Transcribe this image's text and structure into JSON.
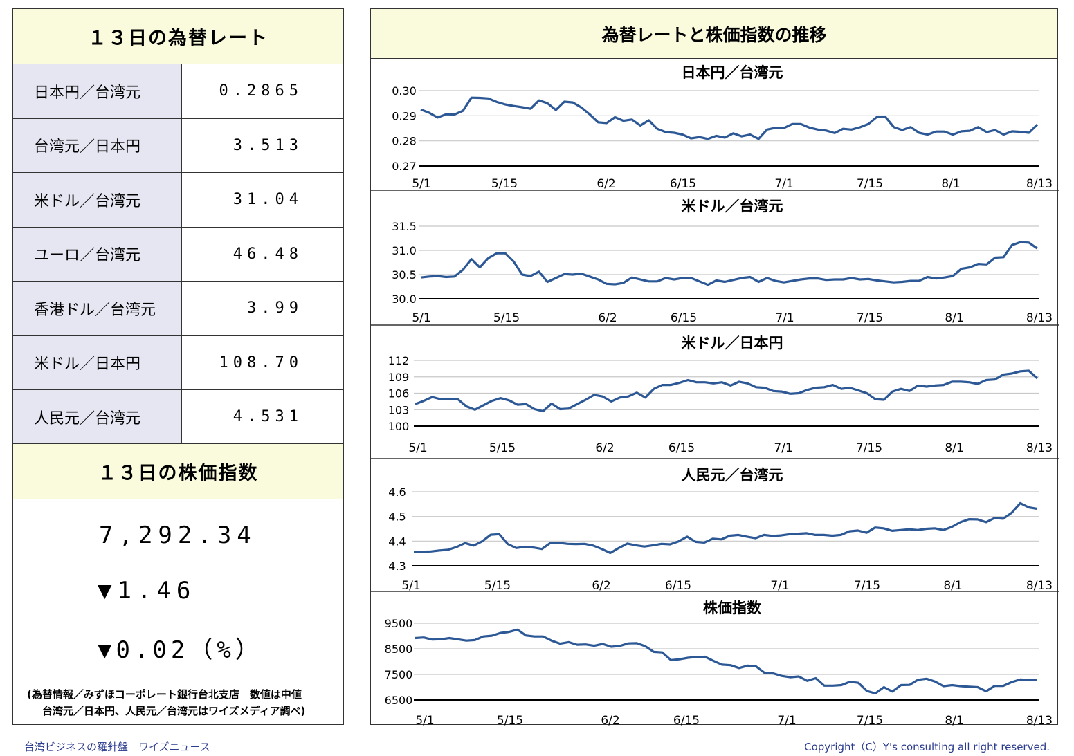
{
  "left": {
    "rates_header": "１３日の為替レート",
    "rates": [
      {
        "label": "日本円／台湾元",
        "value": "0.2865"
      },
      {
        "label": "台湾元／日本円",
        "value": "3.513"
      },
      {
        "label": "米ドル／台湾元",
        "value": "31.04"
      },
      {
        "label": "ユーロ／台湾元",
        "value": "46.48"
      },
      {
        "label": "香港ドル／台湾元",
        "value": "3.99"
      },
      {
        "label": "米ドル／日本円",
        "value": "108.70"
      },
      {
        "label": "人民元／台湾元",
        "value": "4.531"
      }
    ],
    "stock_header": "１３日の株価指数",
    "stock_value": "7,292.34",
    "stock_change": "▼1.46",
    "stock_change_pct": "▼0.02（%）",
    "note_line1": "(為替情報／みずほコーポレート銀行台北支店　数値は中値",
    "note_line2": "台湾元／日本円、人民元／台湾元はワイズメディア調べ)"
  },
  "right": {
    "title": "為替レートと株価指数の推移"
  },
  "footer": {
    "left": "台湾ビジネスの羅針盤　ワイズニュース",
    "right": "Copyright（C）Y's consulting all right reserved."
  },
  "colors": {
    "line": "#2d5896",
    "header_bg": "#fafadc",
    "label_bg": "#e6e6f2",
    "footer_text": "#2b3b8e"
  },
  "chart_data": [
    {
      "type": "line",
      "title": "日本円／台湾元",
      "xticks": [
        "5/1",
        "5/15",
        "6/2",
        "6/15",
        "7/1",
        "7/15",
        "8/1",
        "8/13"
      ],
      "yticks": [
        "0.30",
        "0.29",
        "0.28",
        "0.27"
      ],
      "ylim": [
        0.27,
        0.3
      ],
      "values": [
        0.2925,
        0.2912,
        0.2893,
        0.2906,
        0.2905,
        0.292,
        0.2972,
        0.2971,
        0.2969,
        0.2955,
        0.2945,
        0.2939,
        0.2934,
        0.2928,
        0.2961,
        0.295,
        0.2923,
        0.2956,
        0.2953,
        0.2933,
        0.2906,
        0.2874,
        0.2871,
        0.2894,
        0.288,
        0.2885,
        0.2861,
        0.2882,
        0.2848,
        0.2835,
        0.2832,
        0.2825,
        0.281,
        0.2815,
        0.2808,
        0.282,
        0.2813,
        0.283,
        0.2818,
        0.2825,
        0.2808,
        0.2845,
        0.2852,
        0.2851,
        0.2867,
        0.2867,
        0.2853,
        0.2845,
        0.2841,
        0.2831,
        0.2848,
        0.2845,
        0.2854,
        0.2867,
        0.2895,
        0.2896,
        0.2855,
        0.2843,
        0.2855,
        0.2832,
        0.2825,
        0.2837,
        0.2837,
        0.2825,
        0.2838,
        0.284,
        0.2855,
        0.2835,
        0.2843,
        0.2825,
        0.2838,
        0.2836,
        0.2832,
        0.2865
      ]
    },
    {
      "type": "line",
      "title": "米ドル／台湾元",
      "xticks": [
        "5/1",
        "5/15",
        "6/2",
        "6/15",
        "7/1",
        "7/15",
        "8/1",
        "8/13"
      ],
      "yticks": [
        "31.5",
        "31.0",
        "30.5",
        "30.0"
      ],
      "ylim": [
        30.0,
        31.5
      ],
      "values": [
        30.44,
        30.46,
        30.47,
        30.45,
        30.46,
        30.6,
        30.82,
        30.65,
        30.84,
        30.94,
        30.94,
        30.77,
        30.5,
        30.47,
        30.56,
        30.35,
        30.43,
        30.51,
        30.5,
        30.52,
        30.46,
        30.4,
        30.31,
        30.3,
        30.33,
        30.44,
        30.4,
        30.36,
        30.36,
        30.43,
        30.4,
        30.43,
        30.43,
        30.36,
        30.29,
        30.38,
        30.35,
        30.39,
        30.43,
        30.45,
        30.35,
        30.43,
        30.37,
        30.34,
        30.37,
        30.4,
        30.42,
        30.42,
        30.39,
        30.4,
        30.4,
        30.43,
        30.4,
        30.41,
        30.38,
        30.36,
        30.34,
        30.35,
        30.37,
        30.37,
        30.45,
        30.42,
        30.44,
        30.47,
        30.62,
        30.65,
        30.72,
        30.71,
        30.85,
        30.86,
        31.11,
        31.17,
        31.16,
        31.04
      ]
    },
    {
      "type": "line",
      "title": "米ドル／日本円",
      "xticks": [
        "5/1",
        "5/15",
        "6/2",
        "6/15",
        "7/1",
        "7/15",
        "8/1",
        "8/13"
      ],
      "yticks": [
        "112",
        "109",
        "106",
        "103",
        "100"
      ],
      "ylim": [
        100,
        112
      ],
      "values": [
        104.0,
        104.6,
        105.3,
        104.9,
        104.9,
        104.9,
        103.6,
        103.0,
        103.8,
        104.6,
        105.1,
        104.7,
        103.9,
        104.0,
        103.1,
        102.7,
        104.1,
        103.1,
        103.2,
        104.0,
        104.8,
        105.7,
        105.4,
        104.5,
        105.2,
        105.4,
        106.1,
        105.2,
        106.8,
        107.5,
        107.5,
        107.9,
        108.4,
        108.0,
        108.0,
        107.8,
        108.0,
        107.4,
        108.1,
        107.8,
        107.1,
        107.0,
        106.4,
        106.3,
        105.9,
        106.0,
        106.6,
        107.0,
        107.1,
        107.5,
        106.8,
        107.0,
        106.5,
        106.0,
        104.9,
        104.8,
        106.3,
        106.8,
        106.4,
        107.4,
        107.2,
        107.4,
        107.5,
        108.1,
        108.1,
        108.0,
        107.7,
        108.4,
        108.5,
        109.4,
        109.6,
        110.0,
        110.1,
        108.7
      ]
    },
    {
      "type": "line",
      "title": "人民元／台湾元",
      "xticks": [
        "5/1",
        "5/15",
        "6/2",
        "6/15",
        "7/1",
        "7/15",
        "8/1",
        "8/13"
      ],
      "yticks": [
        "4.6",
        "4.5",
        "4.4",
        "4.3"
      ],
      "ylim": [
        4.3,
        4.6
      ],
      "values": [
        4.357,
        4.357,
        4.358,
        4.362,
        4.365,
        4.376,
        4.392,
        4.382,
        4.399,
        4.426,
        4.428,
        4.388,
        4.372,
        4.377,
        4.374,
        4.368,
        4.393,
        4.393,
        4.389,
        4.388,
        4.389,
        4.382,
        4.368,
        4.352,
        4.372,
        4.39,
        4.383,
        4.378,
        4.383,
        4.389,
        4.387,
        4.399,
        4.418,
        4.397,
        4.394,
        4.41,
        4.407,
        4.422,
        4.425,
        4.418,
        4.412,
        4.425,
        4.421,
        4.423,
        4.428,
        4.43,
        4.432,
        4.425,
        4.425,
        4.422,
        4.425,
        4.44,
        4.443,
        4.434,
        4.455,
        4.452,
        4.442,
        4.445,
        4.448,
        4.445,
        4.45,
        4.452,
        4.445,
        4.458,
        4.477,
        4.489,
        4.488,
        4.477,
        4.494,
        4.491,
        4.515,
        4.554,
        4.537,
        4.531
      ]
    },
    {
      "type": "line",
      "title": "株価指数",
      "xticks": [
        "5/1",
        "5/15",
        "6/2",
        "6/15",
        "7/1",
        "7/15",
        "8/1",
        "8/13"
      ],
      "yticks": [
        "9500",
        "8500",
        "7500",
        "6500"
      ],
      "ylim": [
        6500,
        9500
      ],
      "values": [
        8920,
        8940,
        8860,
        8870,
        8920,
        8870,
        8820,
        8840,
        8980,
        9010,
        9120,
        9160,
        9250,
        9020,
        8980,
        8980,
        8820,
        8700,
        8760,
        8660,
        8670,
        8620,
        8690,
        8580,
        8610,
        8710,
        8720,
        8600,
        8380,
        8360,
        8060,
        8090,
        8150,
        8180,
        8190,
        8030,
        7880,
        7860,
        7750,
        7840,
        7810,
        7560,
        7540,
        7440,
        7390,
        7420,
        7250,
        7350,
        7060,
        7060,
        7080,
        7210,
        7170,
        6850,
        6760,
        7000,
        6830,
        7080,
        7090,
        7290,
        7330,
        7220,
        7040,
        7080,
        7040,
        7020,
        7000,
        6840,
        7050,
        7050,
        7200,
        7300,
        7280,
        7290
      ]
    }
  ]
}
